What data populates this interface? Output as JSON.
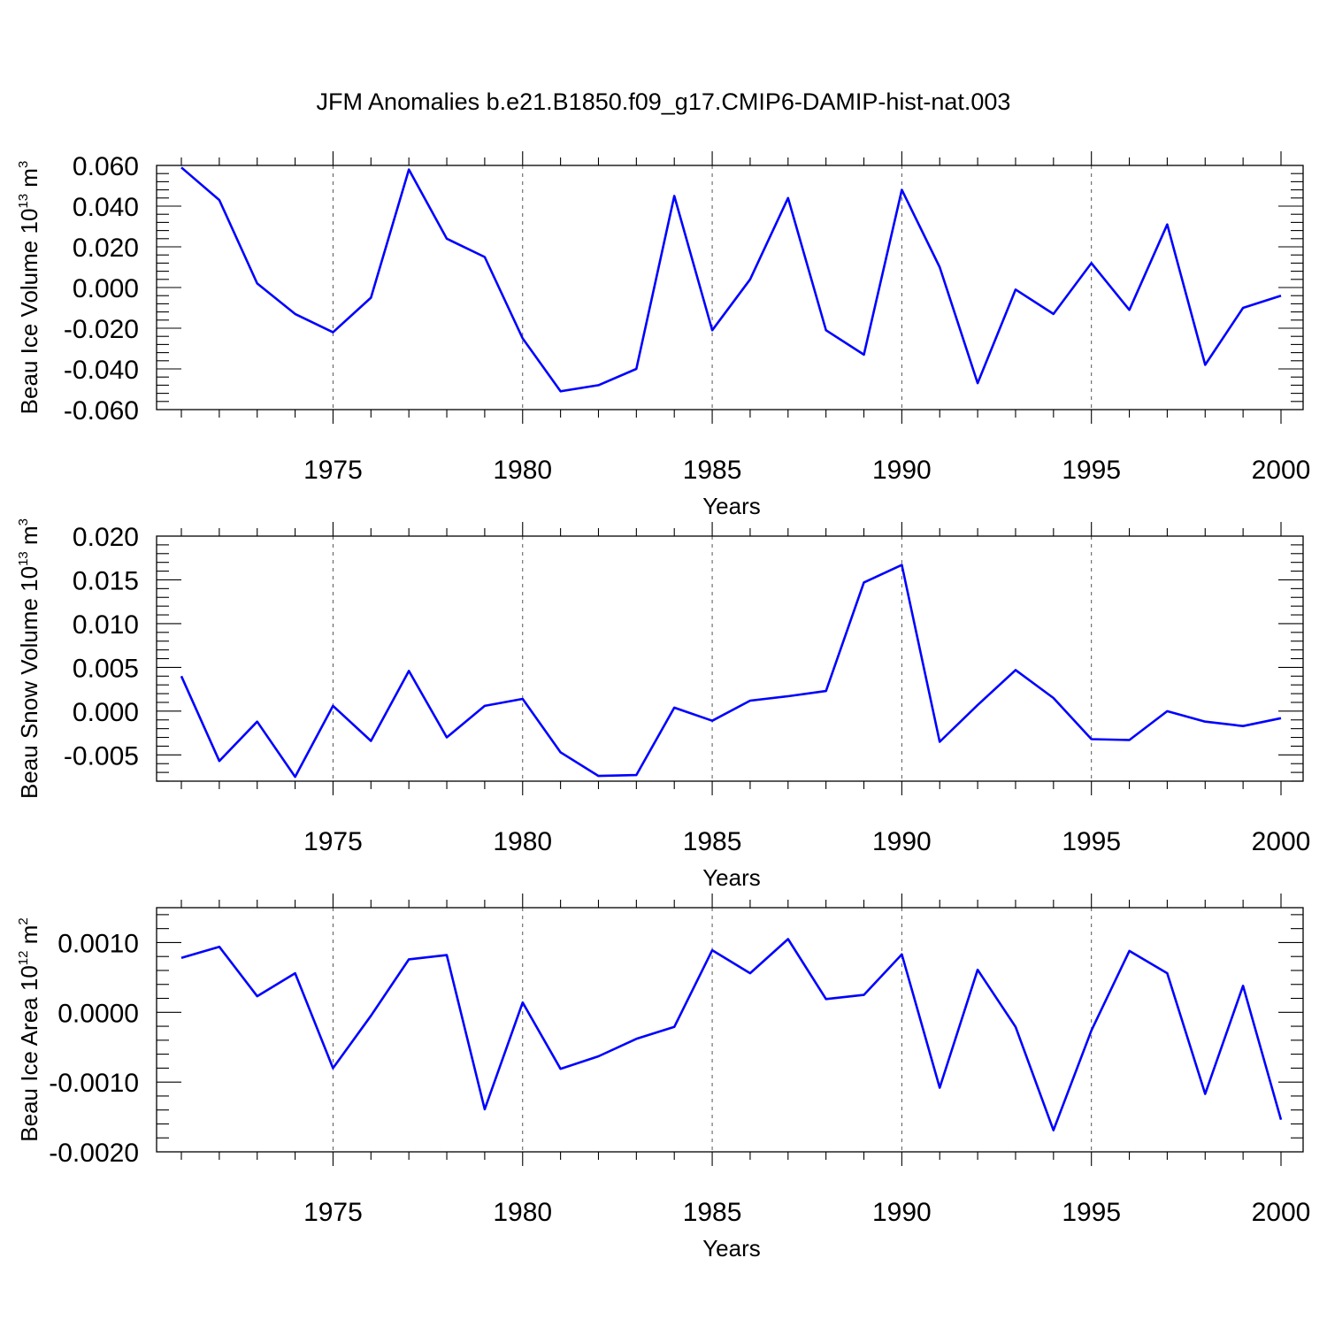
{
  "title": "JFM Anomalies b.e21.B1850.f09_g17.CMIP6-DAMIP-hist-nat.003",
  "colors": {
    "line": "#0000ff",
    "axis": "#000000"
  },
  "chart_data": [
    {
      "type": "line",
      "ylabel_main": "Beau Ice Volume 10",
      "ylabel_exp": "13",
      "ylabel_unit": " m",
      "ylabel_unit_exp": "3",
      "xlabel": "Years",
      "xlim": [
        1971,
        2000
      ],
      "ylim": [
        -0.06,
        0.06
      ],
      "xticks": [
        1975,
        1980,
        1985,
        1990,
        1995,
        2000
      ],
      "xtick_labels": [
        "1975",
        "1980",
        "1985",
        "1990",
        "1995",
        "2000"
      ],
      "yticks": [
        -0.06,
        -0.04,
        -0.02,
        0.0,
        0.02,
        0.04,
        0.06
      ],
      "ytick_labels": [
        "-0.060",
        "-0.040",
        "-0.020",
        "0.000",
        "0.020",
        "0.040",
        "0.060"
      ],
      "x": [
        1971,
        1972,
        1973,
        1974,
        1975,
        1976,
        1977,
        1978,
        1979,
        1980,
        1981,
        1982,
        1983,
        1984,
        1985,
        1986,
        1987,
        1988,
        1989,
        1990,
        1991,
        1992,
        1993,
        1994,
        1995,
        1996,
        1997,
        1998,
        1999,
        2000
      ],
      "values": [
        0.059,
        0.043,
        0.002,
        -0.013,
        -0.022,
        -0.005,
        0.058,
        0.024,
        0.015,
        -0.025,
        -0.051,
        -0.048,
        -0.04,
        0.045,
        -0.021,
        0.004,
        0.044,
        -0.021,
        -0.033,
        0.048,
        0.01,
        -0.047,
        -0.001,
        -0.013,
        0.012,
        -0.011,
        0.031,
        -0.038,
        -0.01,
        -0.004
      ]
    },
    {
      "type": "line",
      "ylabel_main": "Beau Snow Volume 10",
      "ylabel_exp": "13",
      "ylabel_unit": " m",
      "ylabel_unit_exp": "3",
      "xlabel": "Years",
      "xlim": [
        1971,
        2000
      ],
      "ylim": [
        -0.008,
        0.02
      ],
      "xticks": [
        1975,
        1980,
        1985,
        1990,
        1995,
        2000
      ],
      "xtick_labels": [
        "1975",
        "1980",
        "1985",
        "1990",
        "1995",
        "2000"
      ],
      "yticks": [
        -0.005,
        0.0,
        0.005,
        0.01,
        0.015,
        0.02
      ],
      "ytick_labels": [
        "-0.005",
        "0.000",
        "0.005",
        "0.010",
        "0.015",
        "0.020"
      ],
      "x": [
        1971,
        1972,
        1973,
        1974,
        1975,
        1976,
        1977,
        1978,
        1979,
        1980,
        1981,
        1982,
        1983,
        1984,
        1985,
        1986,
        1987,
        1988,
        1989,
        1990,
        1991,
        1992,
        1993,
        1994,
        1995,
        1996,
        1997,
        1998,
        1999,
        2000
      ],
      "values": [
        0.004,
        -0.0057,
        -0.0012,
        -0.0075,
        0.0006,
        -0.0034,
        0.0046,
        -0.003,
        0.0006,
        0.0014,
        -0.0047,
        -0.0074,
        -0.0073,
        0.0004,
        -0.0011,
        0.0012,
        0.0017,
        0.0023,
        0.0147,
        0.0167,
        -0.0035,
        0.0007,
        0.0047,
        0.0015,
        -0.0032,
        -0.0033,
        0.0,
        -0.0012,
        -0.0017,
        -0.0008
      ]
    },
    {
      "type": "line",
      "ylabel_main": "Beau Ice Area 10",
      "ylabel_exp": "12",
      "ylabel_unit": " m",
      "ylabel_unit_exp": "2",
      "xlabel": "Years",
      "xlim": [
        1971,
        2000
      ],
      "ylim": [
        -0.002,
        0.0015
      ],
      "xticks": [
        1975,
        1980,
        1985,
        1990,
        1995,
        2000
      ],
      "xtick_labels": [
        "1975",
        "1980",
        "1985",
        "1990",
        "1995",
        "2000"
      ],
      "yticks": [
        -0.002,
        -0.001,
        0.0,
        0.001
      ],
      "ytick_labels": [
        "-0.0020",
        "-0.0010",
        "0.0000",
        "0.0010"
      ],
      "x": [
        1971,
        1972,
        1973,
        1974,
        1975,
        1976,
        1977,
        1978,
        1979,
        1980,
        1981,
        1982,
        1983,
        1984,
        1985,
        1986,
        1987,
        1988,
        1989,
        1990,
        1991,
        1992,
        1993,
        1994,
        1995,
        1996,
        1997,
        1998,
        1999,
        2000
      ],
      "values": [
        0.00078,
        0.00094,
        0.00023,
        0.00056,
        -0.0008,
        -5e-05,
        0.00076,
        0.00082,
        -0.00139,
        0.00014,
        -0.00081,
        -0.00063,
        -0.00038,
        -0.00021,
        0.00089,
        0.00056,
        0.00105,
        0.00019,
        0.00025,
        0.00083,
        -0.00108,
        0.00061,
        -0.00021,
        -0.00169,
        -0.00026,
        0.00088,
        0.00056,
        -0.00117,
        0.00038,
        -0.00154
      ]
    }
  ]
}
